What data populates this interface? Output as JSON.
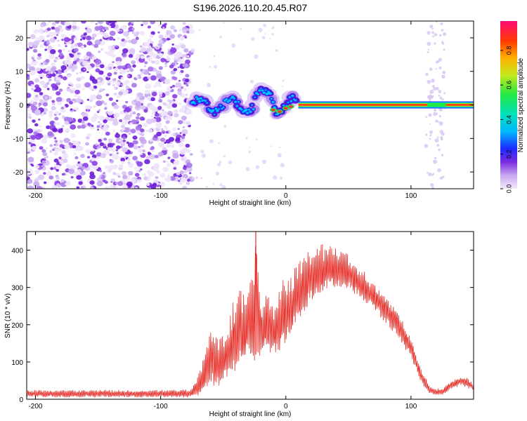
{
  "title": "S196.2026.110.20.45.R07",
  "colors": {
    "axis": "#000000",
    "snr_line": "#e8302a",
    "noise": "#8a2be2",
    "background": "#ffffff"
  },
  "chart_data": [
    {
      "type": "heatmap",
      "name": "spectrogram",
      "xlabel": "Height of straight line (km)",
      "ylabel": "Frequency (Hz)",
      "xlim": [
        -207,
        150
      ],
      "ylim": [
        -25,
        25
      ],
      "xticks": [
        -200,
        -100,
        0,
        100
      ],
      "yticks": [
        -20,
        -10,
        0,
        10,
        20
      ],
      "regions": [
        {
          "label": "noise",
          "x_range": [
            -207,
            -75
          ],
          "y_range": [
            -25,
            25
          ],
          "amplitude": 0.1
        },
        {
          "label": "onset",
          "x_range": [
            -75,
            10
          ],
          "y_range": [
            -5,
            5
          ],
          "amplitude": 0.35
        },
        {
          "label": "carrier",
          "x_range": [
            10,
            150
          ],
          "y_center": 0,
          "amplitude": 0.9
        },
        {
          "label": "late_noise",
          "x_range": [
            112,
            127
          ],
          "y_range": [
            -25,
            25
          ],
          "amplitude": 0.05
        }
      ],
      "colorbar": {
        "label": "Normalized spectral amplitude",
        "range": [
          0.0,
          0.97
        ],
        "ticks": [
          0.0,
          0.2,
          0.4,
          0.6,
          0.8
        ]
      }
    },
    {
      "type": "line",
      "name": "snr",
      "xlabel": "Height of straight line (km)",
      "ylabel": "SNR (10 * v/v)",
      "xlim": [
        -207,
        150
      ],
      "ylim": [
        0,
        450
      ],
      "xticks": [
        -200,
        -100,
        0,
        100
      ],
      "yticks": [
        0,
        100,
        200,
        300,
        400
      ],
      "series": [
        {
          "name": "SNR",
          "x": [
            -207,
            -190,
            -170,
            -150,
            -130,
            -110,
            -90,
            -75,
            -65,
            -60,
            -55,
            -50,
            -45,
            -40,
            -35,
            -30,
            -25,
            -24,
            -22,
            -20,
            -15,
            -10,
            -5,
            0,
            10,
            20,
            30,
            40,
            50,
            60,
            70,
            80,
            90,
            100,
            105,
            110,
            115,
            120,
            125,
            130,
            135,
            140,
            145,
            150
          ],
          "values": [
            15,
            15,
            15,
            15,
            14,
            15,
            15,
            16,
            60,
            110,
            95,
            100,
            120,
            160,
            180,
            200,
            220,
            440,
            230,
            190,
            200,
            175,
            190,
            210,
            270,
            320,
            340,
            345,
            335,
            305,
            275,
            240,
            200,
            140,
            90,
            50,
            25,
            18,
            20,
            32,
            45,
            50,
            45,
            30
          ],
          "envelope_top": [
            25,
            25,
            25,
            25,
            25,
            25,
            25,
            28,
            120,
            190,
            175,
            175,
            215,
            300,
            300,
            350,
            360,
            450,
            340,
            250,
            320,
            255,
            300,
            340,
            380,
            405,
            418,
            410,
            390,
            355,
            318,
            275,
            235,
            165,
            110,
            70,
            35,
            28,
            30,
            45,
            55,
            60,
            58,
            40
          ],
          "envelope_bottom": [
            5,
            5,
            5,
            5,
            5,
            5,
            5,
            5,
            15,
            40,
            30,
            40,
            55,
            70,
            80,
            90,
            100,
            120,
            110,
            120,
            130,
            120,
            130,
            150,
            210,
            260,
            290,
            300,
            295,
            270,
            240,
            200,
            160,
            110,
            70,
            30,
            15,
            10,
            12,
            20,
            30,
            35,
            30,
            20
          ]
        }
      ]
    }
  ]
}
